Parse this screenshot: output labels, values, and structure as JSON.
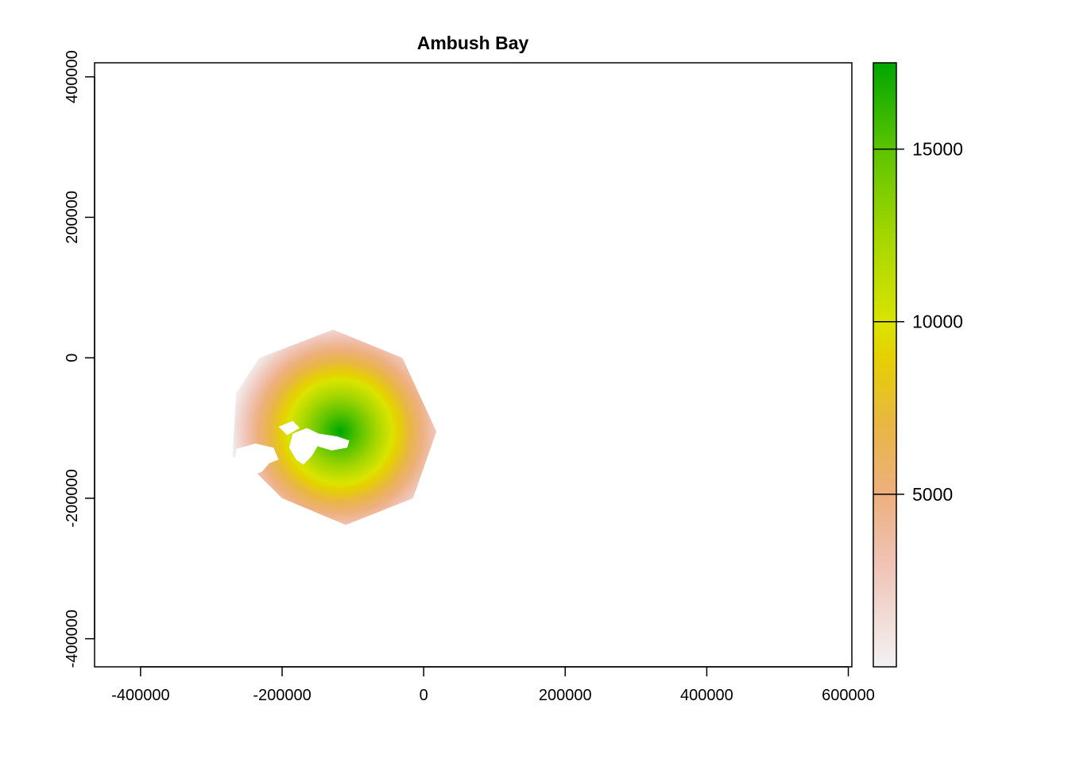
{
  "chart_data": {
    "type": "heatmap",
    "title": "Ambush Bay",
    "xlabel": "",
    "ylabel": "",
    "xlim": [
      -465000,
      605000
    ],
    "ylim": [
      -440000,
      420000
    ],
    "x_ticks": [
      -400000,
      -200000,
      0,
      200000,
      400000,
      600000
    ],
    "x_tick_labels": [
      "-400000",
      "-200000",
      "0",
      "200000",
      "400000",
      "600000"
    ],
    "y_ticks": [
      -400000,
      -200000,
      0,
      200000,
      400000
    ],
    "y_tick_labels": [
      "-400000",
      "-200000",
      "0",
      "200000",
      "400000"
    ],
    "raster": {
      "center": [
        -118000,
        -105000
      ],
      "peak_value": 17500,
      "outline": [
        [
          -128000,
          40000
        ],
        [
          -30000,
          0
        ],
        [
          18000,
          -105000
        ],
        [
          -15000,
          -200000
        ],
        [
          -110000,
          -238000
        ],
        [
          -200000,
          -200000
        ],
        [
          -240000,
          -160000
        ],
        [
          -270000,
          -140000
        ],
        [
          -265000,
          -50000
        ],
        [
          -232000,
          0
        ]
      ],
      "no_data_regions": [
        [
          [
            -185000,
            -108000
          ],
          [
            -165000,
            -100000
          ],
          [
            -148000,
            -108000
          ],
          [
            -122000,
            -112000
          ],
          [
            -105000,
            -118000
          ],
          [
            -108000,
            -128000
          ],
          [
            -130000,
            -132000
          ],
          [
            -150000,
            -126000
          ],
          [
            -158000,
            -140000
          ],
          [
            -170000,
            -152000
          ],
          [
            -180000,
            -145000
          ],
          [
            -190000,
            -128000
          ]
        ],
        [
          [
            -205000,
            -98000
          ],
          [
            -185000,
            -90000
          ],
          [
            -175000,
            -100000
          ],
          [
            -193000,
            -110000
          ]
        ],
        [
          [
            -265000,
            -130000
          ],
          [
            -238000,
            -122000
          ],
          [
            -212000,
            -128000
          ],
          [
            -205000,
            -145000
          ],
          [
            -218000,
            -150000
          ],
          [
            -228000,
            -162000
          ],
          [
            -242000,
            -168000
          ],
          [
            -246000,
            -195000
          ],
          [
            -262000,
            -190000
          ],
          [
            -268000,
            -160000
          ]
        ]
      ]
    },
    "legend": {
      "position": "right",
      "min": 0,
      "max": 17500,
      "ticks": [
        5000,
        10000,
        15000
      ],
      "tick_labels": [
        "5000",
        "10000",
        "15000"
      ],
      "color_stops": [
        {
          "value": 0,
          "color": "#f2f2f2"
        },
        {
          "value": 3000,
          "color": "#f0c3b5"
        },
        {
          "value": 5000,
          "color": "#edb07e"
        },
        {
          "value": 7000,
          "color": "#e9b644"
        },
        {
          "value": 9000,
          "color": "#e5d100"
        },
        {
          "value": 10000,
          "color": "#dae400"
        },
        {
          "value": 12500,
          "color": "#a4d600"
        },
        {
          "value": 15000,
          "color": "#5cc400"
        },
        {
          "value": 17500,
          "color": "#00a600"
        }
      ]
    }
  }
}
